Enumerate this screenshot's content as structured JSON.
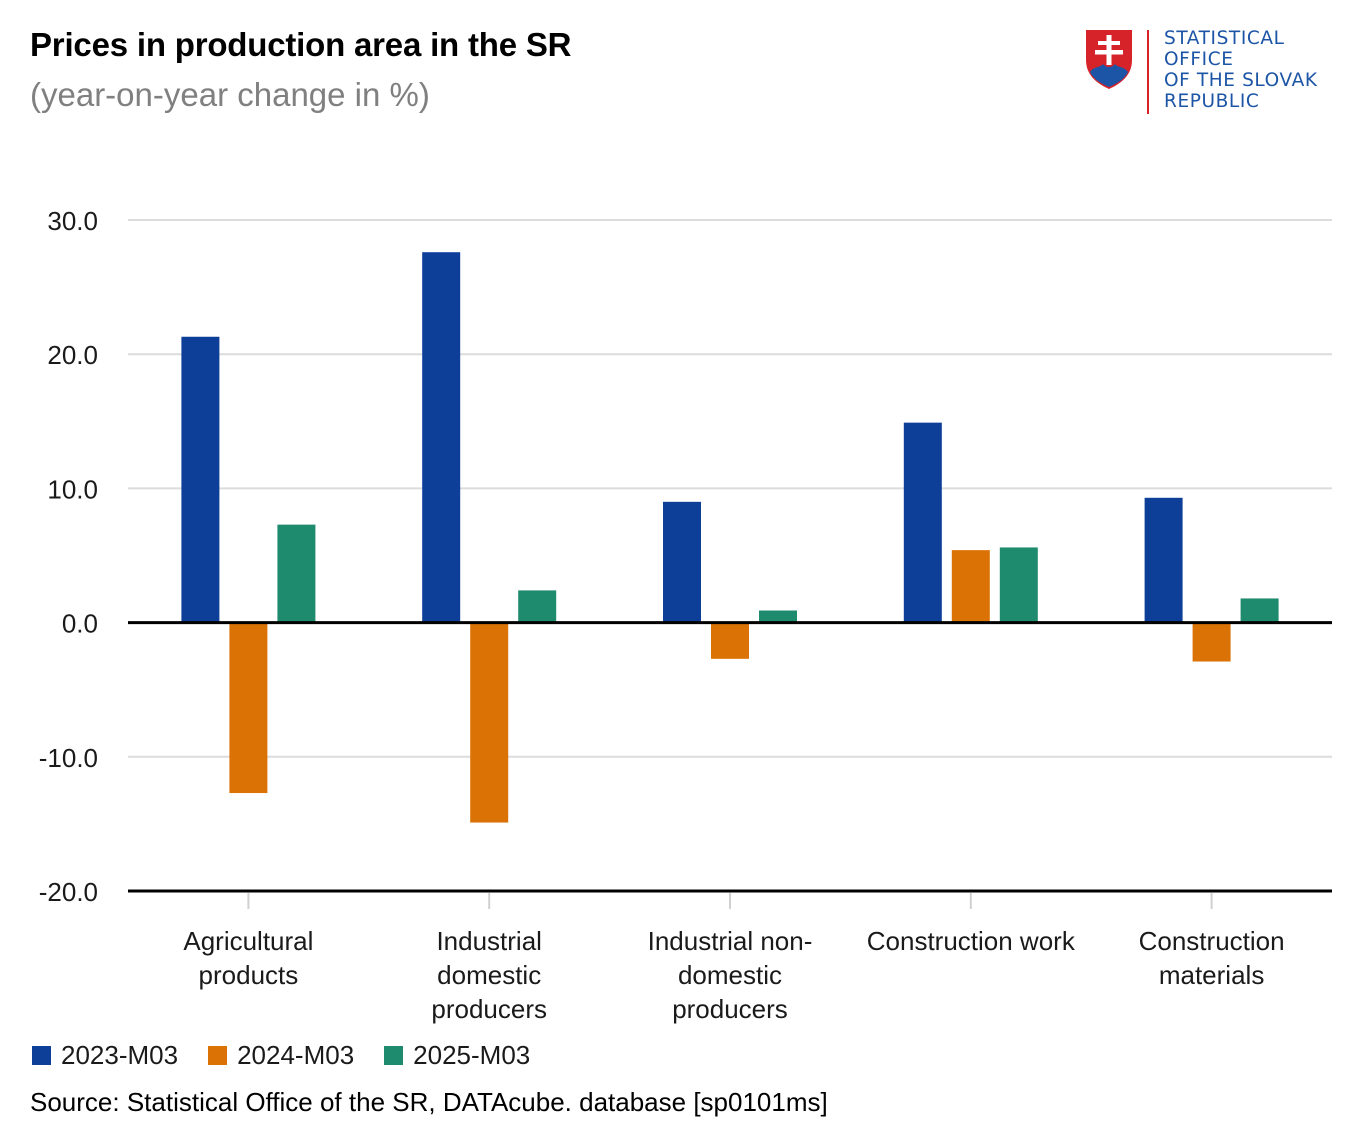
{
  "header": {
    "title": "Prices in production area in the SR",
    "subtitle": "(year-on-year change in %)"
  },
  "logo": {
    "lines": [
      "STATISTICAL",
      "OFFICE",
      "OF THE SLOVAK",
      "REPUBLIC"
    ],
    "colors": {
      "text": "#1d55a6",
      "rule": "#d6232a",
      "shield_red": "#d6232a",
      "shield_blue": "#1d55a6"
    },
    "icon": "coat-of-arms-icon"
  },
  "chart_data": {
    "type": "bar",
    "title": "Prices in production area in the SR",
    "subtitle": "(year-on-year change in %)",
    "categories": [
      [
        "Agricultural",
        "products"
      ],
      [
        "Industrial",
        "domestic",
        "producers"
      ],
      [
        "Industrial non-",
        "domestic",
        "producers"
      ],
      [
        "Construction work"
      ],
      [
        "Construction",
        "materials"
      ]
    ],
    "series": [
      {
        "name": "2023-M03",
        "color": "#0d3f99",
        "values": [
          21.3,
          27.6,
          9.0,
          14.9,
          9.3
        ]
      },
      {
        "name": "2024-M03",
        "color": "#db7205",
        "values": [
          -12.7,
          -14.9,
          -2.7,
          5.4,
          -2.9
        ]
      },
      {
        "name": "2025-M03",
        "color": "#1e8a6e",
        "values": [
          7.3,
          2.4,
          0.9,
          5.6,
          1.8
        ]
      }
    ],
    "ylim": [
      -20,
      30
    ],
    "yticks": [
      "30.0",
      "20.0",
      "10.0",
      "0.0",
      "-10.0",
      "-20.0"
    ],
    "ytick_values": [
      30,
      20,
      10,
      0,
      -10,
      -20
    ],
    "grid": true,
    "legend_position": "bottom-left"
  },
  "source": "Source: Statistical Office of the SR, DATAcube. database [sp0101ms]"
}
